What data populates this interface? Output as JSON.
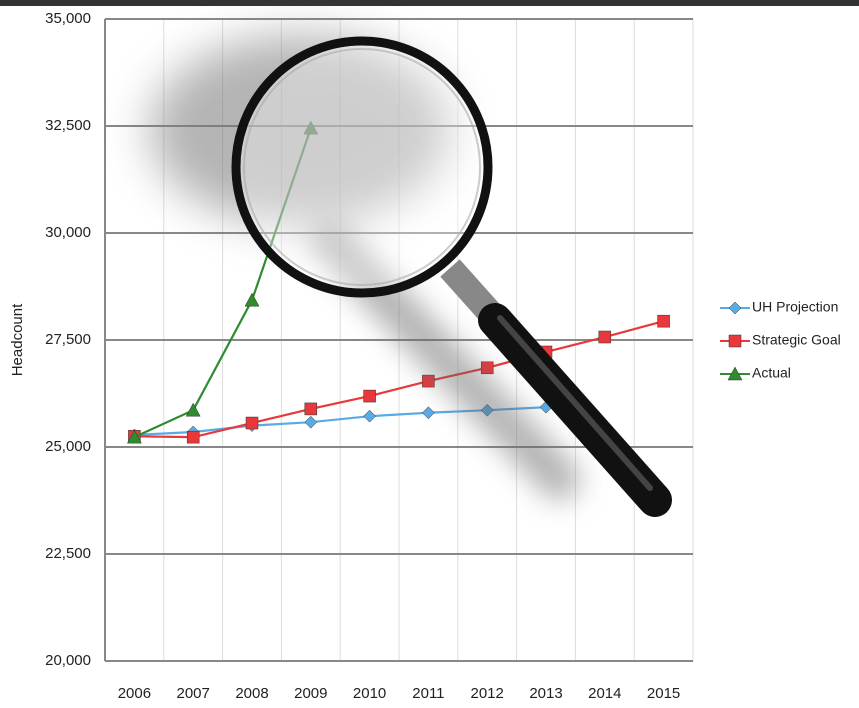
{
  "chart_data": {
    "type": "line",
    "y_label": "Headcount",
    "categories": [
      "2006",
      "2007",
      "2008",
      "2009",
      "2010",
      "2011",
      "2012",
      "2013",
      "2014",
      "2015"
    ],
    "series": [
      {
        "name": "UH Projection",
        "color": "#5aaae6",
        "marker": "diamond",
        "values": [
          25280,
          25350,
          25500,
          25580,
          25720,
          25800,
          25860,
          25930,
          null,
          null
        ]
      },
      {
        "name": "Strategic Goal",
        "color": "#e8383b",
        "marker": "square",
        "values": [
          25250,
          25230,
          25560,
          25890,
          26190,
          26540,
          26850,
          27220,
          27570,
          27940
        ]
      },
      {
        "name": "Actual",
        "color": "#2e8b2e",
        "marker": "triangle",
        "values": [
          25230,
          25860,
          28430,
          32450,
          null,
          null,
          null,
          null,
          null,
          null
        ]
      }
    ],
    "ylim": [
      20000,
      35000
    ],
    "yticks": [
      {
        "value": 20000,
        "label": "20,000"
      },
      {
        "value": 22500,
        "label": "22,500"
      },
      {
        "value": 25000,
        "label": "25,000"
      },
      {
        "value": 27500,
        "label": "27,500"
      },
      {
        "value": 30000,
        "label": "30,000"
      },
      {
        "value": 32500,
        "label": "32,500"
      },
      {
        "value": 35000,
        "label": "35,000"
      }
    ],
    "grid": true,
    "legend": "right"
  }
}
